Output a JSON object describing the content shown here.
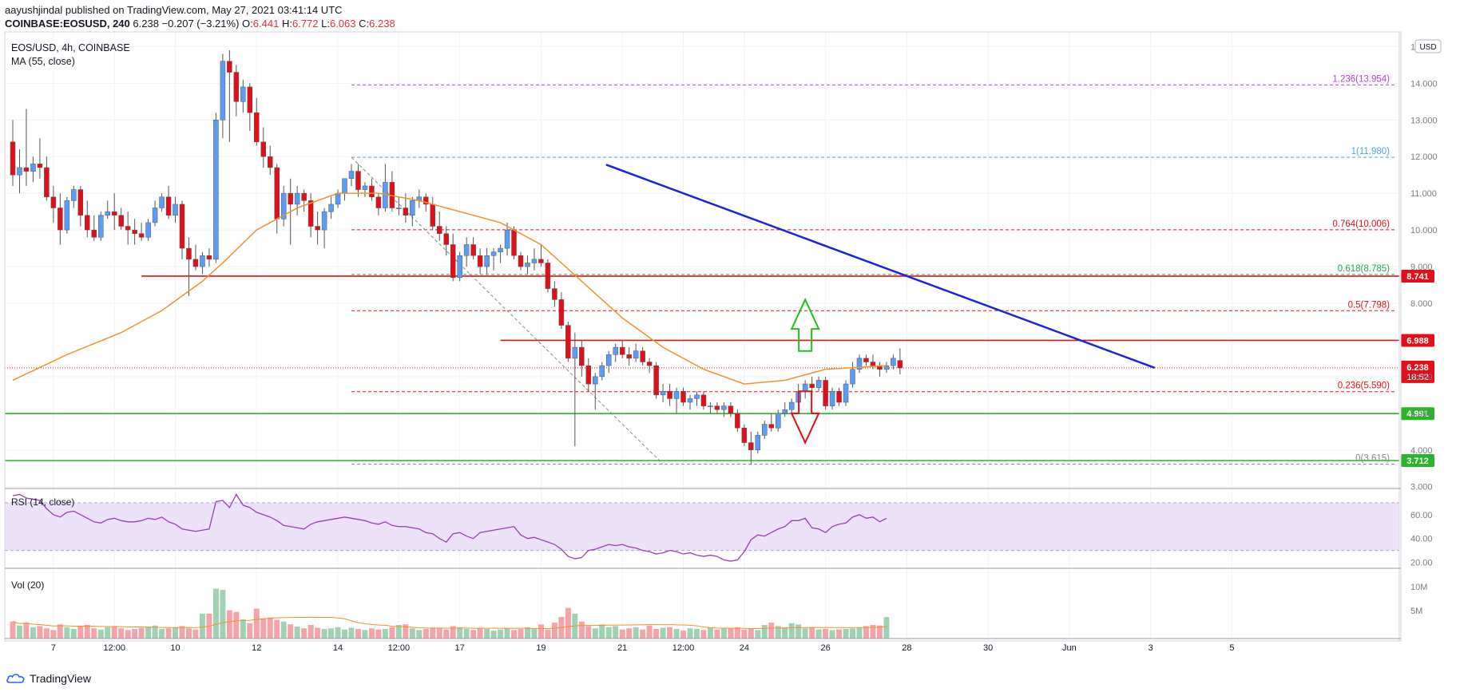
{
  "header": {
    "published": "aayushjindal published on TradingView.com, May 27, 2021 03:41:14 UTC",
    "symbol": "COINBASE:EOSUSD, 240",
    "last": "6.238",
    "change": "−0.207 (−3.21%)",
    "o_label": "O:",
    "o_value": "6.441",
    "h_label": "H:",
    "h_value": "6.772",
    "l_label": "L:",
    "l_value": "6.063",
    "c_label": "C:",
    "c_value": "6.238"
  },
  "footer": {
    "brand": "TradingView"
  },
  "colors": {
    "up": "#5b9cf6",
    "down": "#e0101b",
    "ma": "#f0922a",
    "trend": "#1b24d6",
    "support": "#2ab52a",
    "resistance": "#e0101b",
    "rsi": "#9c3bb7",
    "rsi_band": "#eee2fa",
    "vol_up": "#9fd2b2",
    "vol_down": "#f4a3a9"
  },
  "icons": {
    "arrow_up": "green-up-arrow-icon",
    "arrow_down": "red-down-arrow-icon",
    "logo": "tradingview-cloud-icon"
  },
  "chart_data": {
    "type": "candlestick",
    "pane_title": "EOS/USD, 4h, COINBASE",
    "indicator_ma": "MA (55, close)",
    "currency_badge": "USD",
    "y_ticks": [
      "15.000",
      "14.000",
      "13.000",
      "12.000",
      "11.000",
      "10.000",
      "9.000",
      "8.000",
      "6.000",
      "5.000",
      "4.000",
      "3.000"
    ],
    "y_range": [
      2.95,
      15.4
    ],
    "x_ticks": [
      "7",
      "12:00",
      "10",
      "12",
      "14",
      "12:00",
      "17",
      "19",
      "21",
      "12:00",
      "24",
      "26",
      "28",
      "30",
      "Jun",
      "3",
      "5"
    ],
    "x_range": [
      "2021-05-06",
      "2021-06-06"
    ],
    "candles": [
      {
        "o": 12.4,
        "h": 13.0,
        "l": 11.2,
        "c": 11.5
      },
      {
        "o": 11.5,
        "h": 12.2,
        "l": 11.0,
        "c": 11.7
      },
      {
        "o": 11.7,
        "h": 13.3,
        "l": 11.2,
        "c": 11.6
      },
      {
        "o": 11.6,
        "h": 12.0,
        "l": 11.3,
        "c": 11.8
      },
      {
        "o": 11.8,
        "h": 12.5,
        "l": 11.4,
        "c": 11.7
      },
      {
        "o": 11.7,
        "h": 12.0,
        "l": 10.8,
        "c": 10.9
      },
      {
        "o": 10.9,
        "h": 11.2,
        "l": 10.2,
        "c": 10.6
      },
      {
        "o": 10.6,
        "h": 11.0,
        "l": 9.6,
        "c": 10.0
      },
      {
        "o": 10.0,
        "h": 10.9,
        "l": 9.9,
        "c": 10.8
      },
      {
        "o": 10.8,
        "h": 11.2,
        "l": 10.6,
        "c": 11.1
      },
      {
        "o": 11.1,
        "h": 11.2,
        "l": 10.1,
        "c": 10.4
      },
      {
        "o": 10.4,
        "h": 10.8,
        "l": 9.8,
        "c": 10.0
      },
      {
        "o": 10.0,
        "h": 10.4,
        "l": 9.7,
        "c": 9.8
      },
      {
        "o": 9.8,
        "h": 10.5,
        "l": 9.7,
        "c": 10.4
      },
      {
        "o": 10.4,
        "h": 10.8,
        "l": 10.3,
        "c": 10.5
      },
      {
        "o": 10.5,
        "h": 11.0,
        "l": 10.0,
        "c": 10.4
      },
      {
        "o": 10.4,
        "h": 10.6,
        "l": 10.0,
        "c": 10.1
      },
      {
        "o": 10.1,
        "h": 10.5,
        "l": 9.6,
        "c": 10.0
      },
      {
        "o": 10.0,
        "h": 10.3,
        "l": 9.6,
        "c": 9.9
      },
      {
        "o": 9.9,
        "h": 10.2,
        "l": 9.7,
        "c": 9.8
      },
      {
        "o": 9.8,
        "h": 10.3,
        "l": 9.7,
        "c": 10.2
      },
      {
        "o": 10.2,
        "h": 10.8,
        "l": 10.1,
        "c": 10.6
      },
      {
        "o": 10.6,
        "h": 11.0,
        "l": 10.5,
        "c": 10.9
      },
      {
        "o": 10.9,
        "h": 11.2,
        "l": 10.3,
        "c": 10.4
      },
      {
        "o": 10.4,
        "h": 10.9,
        "l": 10.2,
        "c": 10.7
      },
      {
        "o": 10.7,
        "h": 10.8,
        "l": 9.2,
        "c": 9.5
      },
      {
        "o": 9.5,
        "h": 9.8,
        "l": 8.2,
        "c": 9.2
      },
      {
        "o": 9.2,
        "h": 9.6,
        "l": 8.9,
        "c": 9.0
      },
      {
        "o": 9.0,
        "h": 9.4,
        "l": 8.8,
        "c": 9.3
      },
      {
        "o": 9.3,
        "h": 9.5,
        "l": 9.0,
        "c": 9.2
      },
      {
        "o": 9.2,
        "h": 13.2,
        "l": 9.1,
        "c": 13.0
      },
      {
        "o": 13.0,
        "h": 14.8,
        "l": 12.5,
        "c": 14.6
      },
      {
        "o": 14.6,
        "h": 14.9,
        "l": 12.4,
        "c": 14.3
      },
      {
        "o": 14.3,
        "h": 14.5,
        "l": 13.1,
        "c": 13.5
      },
      {
        "o": 13.5,
        "h": 14.1,
        "l": 13.2,
        "c": 13.9
      },
      {
        "o": 13.9,
        "h": 14.0,
        "l": 12.7,
        "c": 13.2
      },
      {
        "o": 13.2,
        "h": 13.6,
        "l": 12.3,
        "c": 12.4
      },
      {
        "o": 12.4,
        "h": 12.8,
        "l": 11.7,
        "c": 12.0
      },
      {
        "o": 12.0,
        "h": 12.3,
        "l": 11.5,
        "c": 11.7
      },
      {
        "o": 11.7,
        "h": 11.8,
        "l": 9.9,
        "c": 10.3
      },
      {
        "o": 10.3,
        "h": 11.2,
        "l": 10.1,
        "c": 11.0
      },
      {
        "o": 11.0,
        "h": 11.4,
        "l": 9.6,
        "c": 10.7
      },
      {
        "o": 10.7,
        "h": 11.2,
        "l": 10.4,
        "c": 11.0
      },
      {
        "o": 11.0,
        "h": 11.1,
        "l": 10.5,
        "c": 10.8
      },
      {
        "o": 10.8,
        "h": 11.0,
        "l": 9.8,
        "c": 10.1
      },
      {
        "o": 10.1,
        "h": 10.5,
        "l": 9.6,
        "c": 10.0
      },
      {
        "o": 10.0,
        "h": 10.6,
        "l": 9.5,
        "c": 10.5
      },
      {
        "o": 10.5,
        "h": 10.9,
        "l": 10.3,
        "c": 10.7
      },
      {
        "o": 10.7,
        "h": 11.1,
        "l": 10.6,
        "c": 11.0
      },
      {
        "o": 11.0,
        "h": 11.3,
        "l": 10.8,
        "c": 11.4
      },
      {
        "o": 11.4,
        "h": 11.8,
        "l": 11.2,
        "c": 11.6
      },
      {
        "o": 11.6,
        "h": 11.8,
        "l": 10.9,
        "c": 11.1
      },
      {
        "o": 11.1,
        "h": 11.3,
        "l": 10.9,
        "c": 11.2
      },
      {
        "o": 11.2,
        "h": 11.4,
        "l": 10.8,
        "c": 10.9
      },
      {
        "o": 10.9,
        "h": 11.0,
        "l": 10.4,
        "c": 10.6
      },
      {
        "o": 10.6,
        "h": 11.8,
        "l": 10.5,
        "c": 11.3
      },
      {
        "o": 11.3,
        "h": 11.6,
        "l": 10.5,
        "c": 10.6
      },
      {
        "o": 10.6,
        "h": 10.9,
        "l": 10.4,
        "c": 10.6
      },
      {
        "o": 10.6,
        "h": 11.0,
        "l": 10.2,
        "c": 10.4
      },
      {
        "o": 10.4,
        "h": 10.9,
        "l": 10.1,
        "c": 10.8
      },
      {
        "o": 10.8,
        "h": 11.1,
        "l": 10.6,
        "c": 10.9
      },
      {
        "o": 10.9,
        "h": 11.0,
        "l": 10.5,
        "c": 10.7
      },
      {
        "o": 10.7,
        "h": 10.9,
        "l": 10.0,
        "c": 10.1
      },
      {
        "o": 10.1,
        "h": 10.5,
        "l": 9.7,
        "c": 9.9
      },
      {
        "o": 9.9,
        "h": 10.1,
        "l": 9.3,
        "c": 9.6
      },
      {
        "o": 9.6,
        "h": 9.9,
        "l": 8.6,
        "c": 8.7
      },
      {
        "o": 8.7,
        "h": 9.4,
        "l": 8.6,
        "c": 9.3
      },
      {
        "o": 9.3,
        "h": 9.8,
        "l": 9.0,
        "c": 9.6
      },
      {
        "o": 9.6,
        "h": 9.8,
        "l": 9.2,
        "c": 9.3
      },
      {
        "o": 9.3,
        "h": 9.5,
        "l": 8.8,
        "c": 9.0
      },
      {
        "o": 9.0,
        "h": 9.5,
        "l": 8.8,
        "c": 9.3
      },
      {
        "o": 9.3,
        "h": 9.5,
        "l": 8.9,
        "c": 9.4
      },
      {
        "o": 9.4,
        "h": 9.6,
        "l": 9.1,
        "c": 9.5
      },
      {
        "o": 9.5,
        "h": 10.2,
        "l": 9.3,
        "c": 10.0
      },
      {
        "o": 10.0,
        "h": 10.1,
        "l": 9.2,
        "c": 9.3
      },
      {
        "o": 9.3,
        "h": 9.4,
        "l": 8.9,
        "c": 9.0
      },
      {
        "o": 9.0,
        "h": 9.3,
        "l": 8.8,
        "c": 9.1
      },
      {
        "o": 9.1,
        "h": 9.5,
        "l": 8.9,
        "c": 9.2
      },
      {
        "o": 9.2,
        "h": 9.6,
        "l": 9.0,
        "c": 9.1
      },
      {
        "o": 9.1,
        "h": 9.2,
        "l": 8.3,
        "c": 8.4
      },
      {
        "o": 8.4,
        "h": 8.6,
        "l": 7.9,
        "c": 8.1
      },
      {
        "o": 8.1,
        "h": 8.3,
        "l": 7.3,
        "c": 7.4
      },
      {
        "o": 7.4,
        "h": 7.5,
        "l": 6.4,
        "c": 6.5
      },
      {
        "o": 6.5,
        "h": 7.2,
        "l": 4.1,
        "c": 6.8
      },
      {
        "o": 6.8,
        "h": 7.0,
        "l": 6.0,
        "c": 6.3
      },
      {
        "o": 6.3,
        "h": 6.5,
        "l": 5.6,
        "c": 5.8
      },
      {
        "o": 5.8,
        "h": 6.1,
        "l": 5.1,
        "c": 6.0
      },
      {
        "o": 6.0,
        "h": 6.4,
        "l": 5.9,
        "c": 6.3
      },
      {
        "o": 6.3,
        "h": 6.7,
        "l": 6.1,
        "c": 6.6
      },
      {
        "o": 6.6,
        "h": 6.9,
        "l": 6.4,
        "c": 6.8
      },
      {
        "o": 6.8,
        "h": 7.0,
        "l": 6.5,
        "c": 6.6
      },
      {
        "o": 6.6,
        "h": 6.8,
        "l": 6.3,
        "c": 6.5
      },
      {
        "o": 6.5,
        "h": 6.9,
        "l": 6.4,
        "c": 6.7
      },
      {
        "o": 6.7,
        "h": 6.8,
        "l": 6.3,
        "c": 6.4
      },
      {
        "o": 6.4,
        "h": 6.5,
        "l": 6.1,
        "c": 6.3
      },
      {
        "o": 6.3,
        "h": 6.4,
        "l": 5.4,
        "c": 5.5
      },
      {
        "o": 5.5,
        "h": 5.8,
        "l": 5.3,
        "c": 5.6
      },
      {
        "o": 5.6,
        "h": 5.8,
        "l": 5.2,
        "c": 5.4
      },
      {
        "o": 5.4,
        "h": 5.7,
        "l": 5.0,
        "c": 5.6
      },
      {
        "o": 5.6,
        "h": 5.7,
        "l": 5.2,
        "c": 5.3
      },
      {
        "o": 5.3,
        "h": 5.5,
        "l": 5.1,
        "c": 5.4
      },
      {
        "o": 5.4,
        "h": 5.6,
        "l": 5.2,
        "c": 5.5
      },
      {
        "o": 5.5,
        "h": 5.6,
        "l": 5.1,
        "c": 5.2
      },
      {
        "o": 5.2,
        "h": 5.3,
        "l": 5.0,
        "c": 5.2
      },
      {
        "o": 5.2,
        "h": 5.3,
        "l": 5.0,
        "c": 5.1
      },
      {
        "o": 5.1,
        "h": 5.3,
        "l": 4.9,
        "c": 5.2
      },
      {
        "o": 5.2,
        "h": 5.3,
        "l": 4.9,
        "c": 5.0
      },
      {
        "o": 5.0,
        "h": 5.1,
        "l": 4.5,
        "c": 4.6
      },
      {
        "o": 4.6,
        "h": 4.7,
        "l": 4.1,
        "c": 4.2
      },
      {
        "o": 4.2,
        "h": 4.5,
        "l": 3.6,
        "c": 4.0
      },
      {
        "o": 4.0,
        "h": 4.5,
        "l": 3.9,
        "c": 4.4
      },
      {
        "o": 4.4,
        "h": 4.8,
        "l": 4.3,
        "c": 4.7
      },
      {
        "o": 4.7,
        "h": 5.0,
        "l": 4.5,
        "c": 4.6
      },
      {
        "o": 4.6,
        "h": 5.1,
        "l": 4.5,
        "c": 5.0
      },
      {
        "o": 5.0,
        "h": 5.3,
        "l": 4.9,
        "c": 5.1
      },
      {
        "o": 5.1,
        "h": 5.4,
        "l": 5.0,
        "c": 5.3
      },
      {
        "o": 5.3,
        "h": 5.8,
        "l": 5.2,
        "c": 5.6
      },
      {
        "o": 5.6,
        "h": 5.9,
        "l": 5.4,
        "c": 5.8
      },
      {
        "o": 5.8,
        "h": 6.0,
        "l": 5.5,
        "c": 5.7
      },
      {
        "o": 5.7,
        "h": 6.0,
        "l": 5.6,
        "c": 5.9
      },
      {
        "o": 5.9,
        "h": 6.0,
        "l": 5.1,
        "c": 5.2
      },
      {
        "o": 5.2,
        "h": 5.7,
        "l": 5.1,
        "c": 5.6
      },
      {
        "o": 5.6,
        "h": 5.7,
        "l": 5.2,
        "c": 5.3
      },
      {
        "o": 5.3,
        "h": 5.9,
        "l": 5.2,
        "c": 5.8
      },
      {
        "o": 5.8,
        "h": 6.4,
        "l": 5.7,
        "c": 6.2
      },
      {
        "o": 6.2,
        "h": 6.6,
        "l": 6.1,
        "c": 6.5
      },
      {
        "o": 6.5,
        "h": 6.6,
        "l": 6.3,
        "c": 6.4
      },
      {
        "o": 6.4,
        "h": 6.6,
        "l": 6.2,
        "c": 6.3
      },
      {
        "o": 6.3,
        "h": 6.4,
        "l": 6.0,
        "c": 6.2
      },
      {
        "o": 6.2,
        "h": 6.4,
        "l": 6.1,
        "c": 6.3
      },
      {
        "o": 6.3,
        "h": 6.6,
        "l": 6.2,
        "c": 6.5
      },
      {
        "o": 6.441,
        "h": 6.772,
        "l": 6.063,
        "c": 6.238
      }
    ],
    "ma55": [
      [
        0,
        5.9
      ],
      [
        8,
        6.6
      ],
      [
        16,
        7.2
      ],
      [
        22,
        7.8
      ],
      [
        28,
        8.6
      ],
      [
        31,
        9.1
      ],
      [
        36,
        10.0
      ],
      [
        42,
        10.6
      ],
      [
        48,
        11.0
      ],
      [
        54,
        11.0
      ],
      [
        60,
        10.8
      ],
      [
        66,
        10.5
      ],
      [
        72,
        10.2
      ],
      [
        78,
        9.6
      ],
      [
        84,
        8.6
      ],
      [
        90,
        7.6
      ],
      [
        96,
        6.8
      ],
      [
        102,
        6.2
      ],
      [
        108,
        5.8
      ],
      [
        114,
        5.9
      ],
      [
        120,
        6.2
      ],
      [
        129,
        6.3
      ]
    ],
    "volume": [
      30,
      23,
      28,
      20,
      22,
      18,
      15,
      25,
      20,
      17,
      22,
      24,
      18,
      16,
      20,
      22,
      18,
      15,
      17,
      19,
      21,
      23,
      17,
      18,
      20,
      22,
      18,
      16,
      44,
      44,
      88,
      86,
      50,
      47,
      34,
      27,
      53,
      35,
      37,
      33,
      30,
      25,
      21,
      18,
      24,
      19,
      17,
      18,
      20,
      16,
      19,
      17,
      15,
      18,
      16,
      17,
      20,
      24,
      25,
      18,
      15,
      17,
      19,
      18,
      16,
      22,
      20,
      17,
      15,
      19,
      17,
      14,
      16,
      18,
      15,
      17,
      20,
      18,
      25,
      16,
      28,
      38,
      54,
      44,
      30,
      22,
      18,
      25,
      20,
      22,
      16,
      18,
      20,
      16,
      23,
      17,
      19,
      20,
      17,
      14,
      18,
      17,
      15,
      19,
      16,
      18,
      18,
      20,
      16,
      17,
      15,
      24,
      28,
      22,
      20,
      27,
      25,
      18,
      20,
      16,
      17,
      15,
      16,
      17,
      18,
      20,
      22,
      24,
      23,
      38
    ],
    "volume_ticks": [
      "10M",
      "5M"
    ],
    "volume_label": "Vol (20)",
    "rsi": [
      76,
      77,
      74,
      73,
      72,
      65,
      60,
      58,
      62,
      63,
      60,
      57,
      54,
      53,
      56,
      57,
      55,
      54,
      54,
      55,
      57,
      56,
      58,
      54,
      52,
      48,
      47,
      46,
      47,
      48,
      71,
      72,
      66,
      77,
      68,
      66,
      62,
      60,
      58,
      55,
      51,
      50,
      49,
      48,
      52,
      54,
      55,
      56,
      57,
      58,
      57,
      56,
      55,
      53,
      52,
      54,
      51,
      50,
      50,
      49,
      48,
      45,
      44,
      40,
      37,
      44,
      45,
      42,
      40,
      45,
      46,
      47,
      48,
      49,
      50,
      43,
      40,
      41,
      39,
      37,
      35,
      31,
      25,
      23,
      24,
      30,
      31,
      33,
      35,
      34,
      35,
      33,
      32,
      30,
      29,
      27,
      28,
      30,
      29,
      27,
      28,
      26,
      25,
      26,
      25,
      22,
      21,
      22,
      29,
      39,
      43,
      42,
      45,
      48,
      50,
      55,
      55,
      57,
      49,
      48,
      45,
      50,
      52,
      53,
      58,
      60,
      57,
      58,
      54,
      57
    ],
    "rsi_label": "RSI (14, close)",
    "rsi_ticks": [
      "60.00",
      "40.00",
      "20.00"
    ],
    "rsi_band": [
      30,
      70
    ],
    "fib_levels": [
      {
        "label": "1.236(13.954)",
        "value": 13.954,
        "color": "#b146c9"
      },
      {
        "label": "1(11.980)",
        "value": 11.98,
        "color": "#50a7d6"
      },
      {
        "label": "0.764(10.006)",
        "value": 10.006,
        "color": "#e0101b"
      },
      {
        "label": "0.618(8.785)",
        "value": 8.785,
        "color": "#1da84f"
      },
      {
        "label": "0.5(7.798)",
        "value": 7.798,
        "color": "#e0101b"
      },
      {
        "label": "0.236(5.590)",
        "value": 5.59,
        "color": "#e0101b"
      },
      {
        "label": "0(3.615)",
        "value": 3.615,
        "color": "#888888"
      }
    ],
    "horizontal_levels": [
      {
        "value": 8.741,
        "label": "8.741",
        "color": "#e0101b"
      },
      {
        "value": 6.988,
        "label": "6.988",
        "color": "#e0101b"
      },
      {
        "value": 4.991,
        "label": "4.991",
        "color": "#2ab52a"
      },
      {
        "value": 3.712,
        "label": "3.712",
        "color": "#2ab52a"
      }
    ],
    "last_price": {
      "value": 6.238,
      "label": "6.238",
      "countdown": "18:52"
    },
    "trendline": [
      [
        14.6,
        11.78
      ],
      [
        28.1,
        6.24
      ]
    ]
  }
}
